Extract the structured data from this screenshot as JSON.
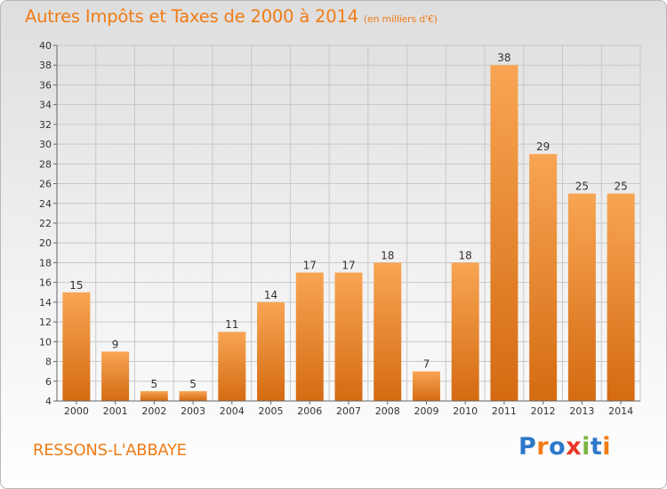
{
  "title": "Autres Impôts et Taxes de 2000 à 2014",
  "unit": "(en milliers d'€)",
  "commune": "RESSONS-L'ABBAYE",
  "logo": {
    "text": "Proxiti",
    "colors": [
      "#2d78c8",
      "#f07c16",
      "#2d78c8",
      "#e8372a",
      "#7cb542",
      "#2d78c8",
      "#f07c16"
    ]
  },
  "colors": {
    "accent": "#f07c16",
    "bar_light": "#f8a553",
    "bar_dark": "#d46b12",
    "grid": "#c8c8c8"
  },
  "chart_data": {
    "type": "bar",
    "categories": [
      "2000",
      "2001",
      "2002",
      "2003",
      "2004",
      "2005",
      "2006",
      "2007",
      "2008",
      "2009",
      "2010",
      "2011",
      "2012",
      "2013",
      "2014"
    ],
    "values": [
      15,
      9,
      5,
      5,
      11,
      14,
      17,
      17,
      18,
      7,
      18,
      38,
      29,
      25,
      25
    ],
    "ylim": [
      4,
      40
    ],
    "yticks": [
      4,
      6,
      8,
      10,
      12,
      14,
      16,
      18,
      20,
      22,
      24,
      26,
      28,
      30,
      32,
      34,
      36,
      38,
      40
    ],
    "grid": true,
    "data_labels": true
  }
}
